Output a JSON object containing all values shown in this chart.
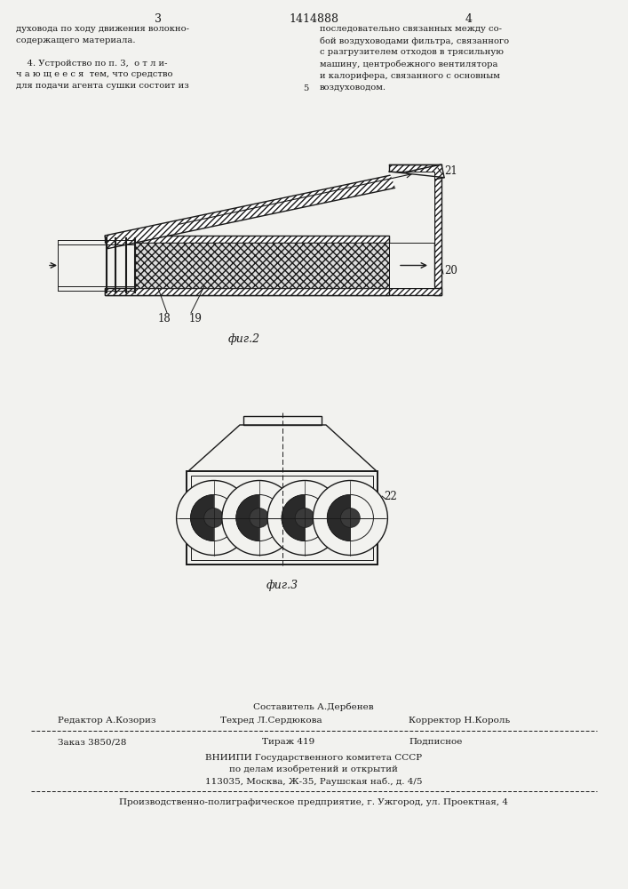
{
  "page_num_left": "3",
  "title_text": "1414888",
  "page_num_right": "4",
  "text_left": "духовода по ходу движения волокно-\nсодержащего материала.\n\n    4. Устройство по п. 3,  о т л и-\nч а ю щ е е с я  тем, что средство\nдля подачи агента сушки состоит из",
  "text_right": "последовательно связанных между со-\nбой воздуховодами фильтра, связанного\nс разгрузителем отходов в трясильную\nмашину, центробежного вентилятора\nи калорифера, связанного с основным\nвоздуховодом.",
  "fig2_label": "фиг.2",
  "fig3_label": "фиг.3",
  "label_18": "18",
  "label_19": "19",
  "label_20": "20",
  "label_21": "21",
  "label_22": "22",
  "footer_composer": "Составитель А.Дербенев",
  "footer_editor": "Редактор А.Козориз",
  "footer_techred": "Техред Л.Сердюкова",
  "footer_corrector": "Корректор Н.Король",
  "footer_order": "Заказ 3850/28",
  "footer_tirazh": "Тираж 419",
  "footer_podpisnoe": "Подписное",
  "footer_vnipi1": "ВНИИПИ Государственного комитета СССР",
  "footer_vnipi2": "по делам изобретений и открытий",
  "footer_vnipi3": "113035, Москва, Ж-35, Раушская наб., д. 4/5",
  "footer_bottom": "Производственно-полиграфическое предприятие, г. Ужгород, ул. Проектная, 4",
  "line_color": "#1a1a1a",
  "bg_color": "#f2f2ef"
}
